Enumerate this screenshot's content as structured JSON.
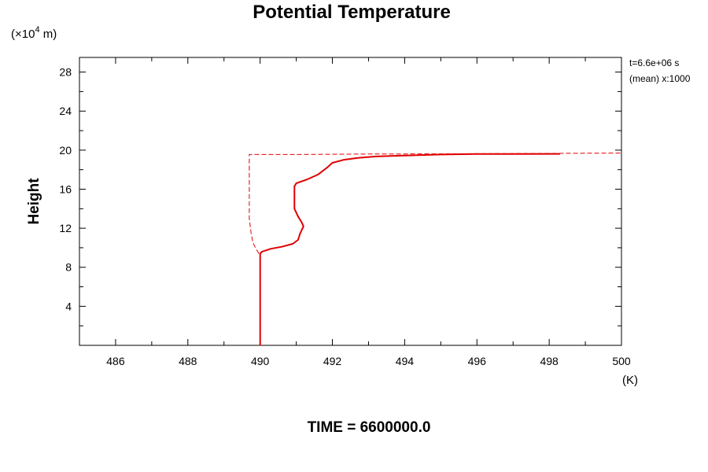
{
  "chart_data": {
    "type": "line",
    "title": "Potential Temperature",
    "xlabel": "",
    "xunit": "(K)",
    "ylabel": "Height",
    "yunit_prefix": "(×10",
    "yunit_exp": "4",
    "yunit_suffix": " m)",
    "xlim": [
      485,
      500
    ],
    "ylim": [
      0,
      29.5
    ],
    "xticks": [
      486,
      488,
      490,
      492,
      494,
      496,
      498,
      500
    ],
    "yticks": [
      4,
      8,
      12,
      16,
      20,
      24,
      28
    ],
    "x_minor_step": 1,
    "y_minor_step": 2,
    "annotations": [
      "t=6.6e+06 s",
      "(mean) x:1000"
    ],
    "footer": "TIME = 6600000.0",
    "color": "#e00000",
    "series": [
      {
        "style": "solid",
        "points": [
          [
            490.0,
            0.0
          ],
          [
            490.0,
            4.0
          ],
          [
            490.0,
            8.0
          ],
          [
            490.0,
            9.4
          ],
          [
            490.05,
            9.6
          ],
          [
            490.3,
            9.9
          ],
          [
            490.6,
            10.1
          ],
          [
            490.9,
            10.4
          ],
          [
            491.05,
            10.8
          ],
          [
            491.1,
            11.4
          ],
          [
            491.2,
            12.2
          ],
          [
            491.15,
            12.6
          ],
          [
            491.05,
            13.2
          ],
          [
            490.95,
            14.0
          ],
          [
            490.95,
            15.2
          ],
          [
            490.95,
            16.3
          ],
          [
            491.0,
            16.6
          ],
          [
            491.3,
            17.0
          ],
          [
            491.6,
            17.5
          ],
          [
            491.85,
            18.2
          ],
          [
            492.0,
            18.7
          ],
          [
            492.3,
            19.0
          ],
          [
            492.7,
            19.2
          ],
          [
            493.2,
            19.35
          ],
          [
            494.0,
            19.45
          ],
          [
            495.0,
            19.55
          ],
          [
            496.0,
            19.6
          ],
          [
            497.0,
            19.6
          ],
          [
            498.3,
            19.62
          ]
        ]
      },
      {
        "style": "dashed",
        "points": [
          [
            490.0,
            0.0
          ],
          [
            490.0,
            4.0
          ],
          [
            490.0,
            8.0
          ],
          [
            490.0,
            9.2
          ],
          [
            489.9,
            9.8
          ],
          [
            489.8,
            10.5
          ],
          [
            489.75,
            11.5
          ],
          [
            489.7,
            13.0
          ],
          [
            489.7,
            15.0
          ],
          [
            489.7,
            17.0
          ],
          [
            489.7,
            19.0
          ],
          [
            489.7,
            19.55
          ],
          [
            491.0,
            19.55
          ],
          [
            493.0,
            19.6
          ],
          [
            495.0,
            19.62
          ],
          [
            497.0,
            19.65
          ],
          [
            500.0,
            19.7
          ]
        ]
      }
    ]
  }
}
